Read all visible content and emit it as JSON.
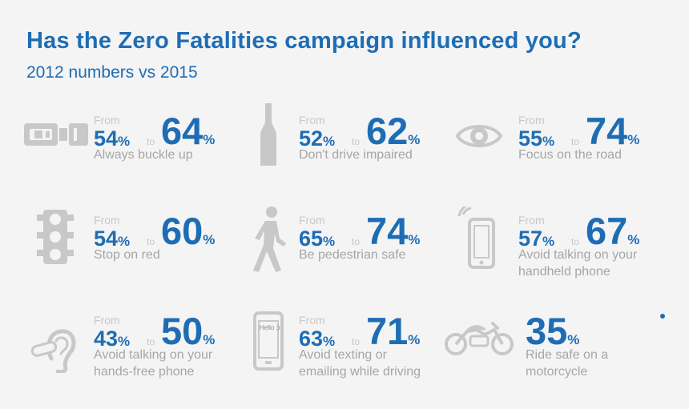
{
  "title": "Has the Zero Fatalities campaign influenced you?",
  "subtitle": "2012 numbers vs 2015",
  "from_word": "From",
  "to_word": "to",
  "percent": "%",
  "colors": {
    "accent": "#1e6db4",
    "icon_gray": "#c8c8c8",
    "label_gray": "#a6a6a6",
    "background": "#f4f4f4"
  },
  "stats": [
    {
      "icon": "seatbelt-icon",
      "old": "54",
      "new": "64",
      "label1": "Always buckle up",
      "label2": ""
    },
    {
      "icon": "bottle-icon",
      "old": "52",
      "new": "62",
      "label1": "Don't drive impaired",
      "label2": ""
    },
    {
      "icon": "eye-icon",
      "old": "55",
      "new": "74",
      "label1": "Focus on the road",
      "label2": ""
    },
    {
      "icon": "traffic-light-icon",
      "old": "54",
      "new": "60",
      "label1": "Stop on red",
      "label2": ""
    },
    {
      "icon": "pedestrian-icon",
      "old": "65",
      "new": "74",
      "label1": "Be pedestrian safe",
      "label2": ""
    },
    {
      "icon": "handheld-phone-icon",
      "old": "57",
      "new": "67",
      "label1": "Avoid talking on your",
      "label2": "handheld phone"
    },
    {
      "icon": "ear-headset-icon",
      "old": "43",
      "new": "50",
      "label1": "Avoid talking on your",
      "label2": "hands-free phone"
    },
    {
      "icon": "texting-phone-icon",
      "old": "63",
      "new": "71",
      "label1": "Avoid texting or",
      "label2": "emailing while driving",
      "phone_text": "Hello :)"
    },
    {
      "icon": "motorcycle-icon",
      "value": "35",
      "label1": "Ride safe on a",
      "label2": "motorcycle"
    }
  ]
}
